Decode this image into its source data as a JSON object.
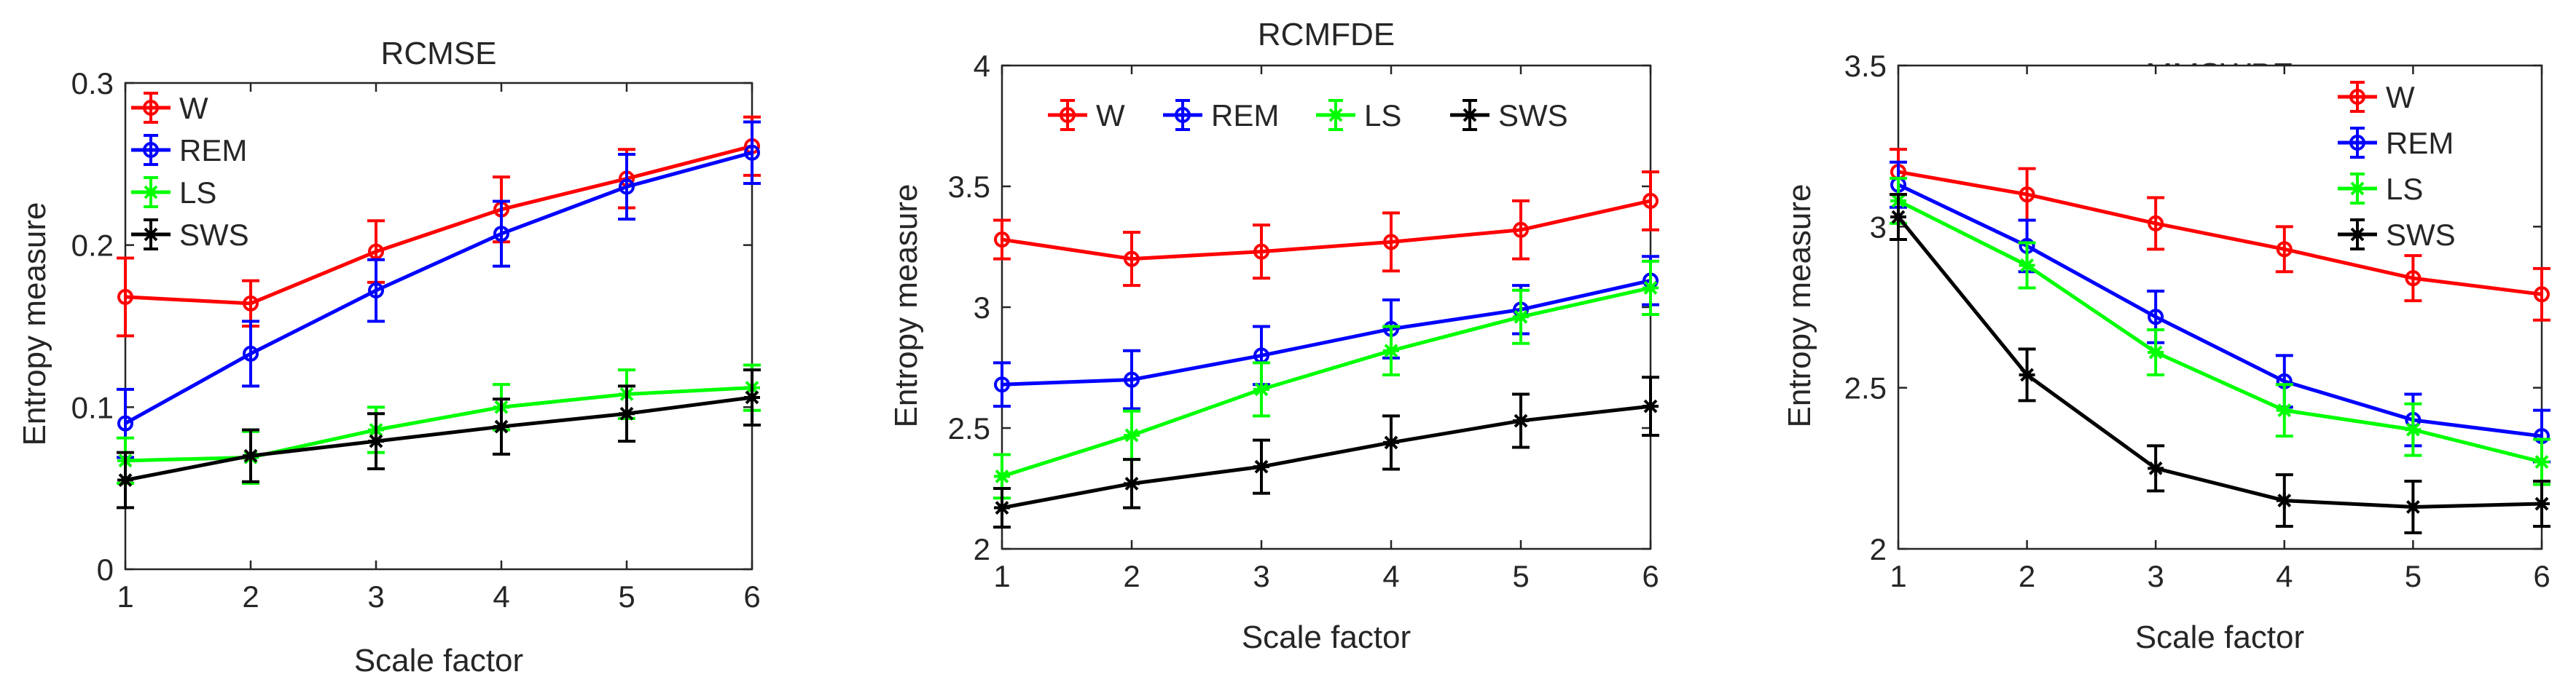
{
  "chart_data": [
    {
      "type": "line",
      "title": "RCMSE",
      "xlabel": "Scale factor",
      "ylabel": "Entropy measure",
      "x": [
        1,
        2,
        3,
        4,
        5,
        6
      ],
      "xticks": [
        "1",
        "2",
        "3",
        "4",
        "5",
        "6"
      ],
      "ylim": [
        0,
        0.3
      ],
      "yticks": [
        0,
        0.1,
        0.2,
        0.3
      ],
      "ytick_labels": [
        "0",
        "0.1",
        "0.2",
        "0.3"
      ],
      "legend": {
        "placement": "top-left",
        "orientation": "vertical"
      },
      "series": [
        {
          "name": "W",
          "color": "#ff0000",
          "marker": "circle",
          "values": [
            0.168,
            0.164,
            0.196,
            0.222,
            0.241,
            0.261
          ],
          "errors": [
            0.024,
            0.014,
            0.019,
            0.02,
            0.018,
            0.018
          ]
        },
        {
          "name": "REM",
          "color": "#0000ff",
          "marker": "circle",
          "values": [
            0.09,
            0.133,
            0.172,
            0.207,
            0.236,
            0.257
          ],
          "errors": [
            0.021,
            0.02,
            0.019,
            0.02,
            0.02,
            0.019
          ]
        },
        {
          "name": "LS",
          "color": "#00ff00",
          "marker": "star",
          "values": [
            0.067,
            0.069,
            0.086,
            0.1,
            0.108,
            0.112
          ],
          "errors": [
            0.014,
            0.016,
            0.014,
            0.014,
            0.015,
            0.014
          ]
        },
        {
          "name": "SWS",
          "color": "#000000",
          "marker": "star",
          "values": [
            0.055,
            0.07,
            0.079,
            0.088,
            0.096,
            0.106
          ],
          "errors": [
            0.017,
            0.016,
            0.017,
            0.017,
            0.017,
            0.017
          ]
        }
      ]
    },
    {
      "type": "line",
      "title": "RCMFDE",
      "xlabel": "Scale factor",
      "ylabel": "Entropy measure",
      "x": [
        1,
        2,
        3,
        4,
        5,
        6
      ],
      "xticks": [
        "1",
        "2",
        "3",
        "4",
        "5",
        "6"
      ],
      "ylim": [
        2,
        4
      ],
      "yticks": [
        2,
        2.5,
        3,
        3.5,
        4
      ],
      "ytick_labels": [
        "2",
        "2.5",
        "3",
        "3.5",
        "4"
      ],
      "legend": {
        "placement": "top",
        "orientation": "horizontal"
      },
      "series": [
        {
          "name": "W",
          "color": "#ff0000",
          "marker": "circle",
          "values": [
            3.28,
            3.2,
            3.23,
            3.27,
            3.32,
            3.44
          ],
          "errors": [
            0.08,
            0.11,
            0.11,
            0.12,
            0.12,
            0.12
          ]
        },
        {
          "name": "REM",
          "color": "#0000ff",
          "marker": "circle",
          "values": [
            2.68,
            2.7,
            2.8,
            2.91,
            2.99,
            3.11
          ],
          "errors": [
            0.09,
            0.12,
            0.12,
            0.12,
            0.1,
            0.1
          ]
        },
        {
          "name": "LS",
          "color": "#00ff00",
          "marker": "star",
          "values": [
            2.3,
            2.47,
            2.66,
            2.82,
            2.96,
            3.08
          ],
          "errors": [
            0.09,
            0.1,
            0.11,
            0.1,
            0.11,
            0.11
          ]
        },
        {
          "name": "SWS",
          "color": "#000000",
          "marker": "star",
          "values": [
            2.17,
            2.27,
            2.34,
            2.44,
            2.53,
            2.59
          ],
          "errors": [
            0.08,
            0.1,
            0.11,
            0.11,
            0.11,
            0.12
          ]
        }
      ]
    },
    {
      "type": "line",
      "title": "MMSWPE",
      "xlabel": "Scale factor",
      "ylabel": "Entropy measure",
      "x": [
        1,
        2,
        3,
        4,
        5,
        6
      ],
      "xticks": [
        "1",
        "2",
        "3",
        "4",
        "5",
        "6"
      ],
      "ylim": [
        2,
        3.5
      ],
      "yticks": [
        2,
        2.5,
        3,
        3.5
      ],
      "ytick_labels": [
        "2",
        "2.5",
        "3",
        "3.5"
      ],
      "legend": {
        "placement": "top-right",
        "orientation": "vertical"
      },
      "series": [
        {
          "name": "W",
          "color": "#ff0000",
          "marker": "circle",
          "values": [
            3.17,
            3.1,
            3.01,
            2.93,
            2.84,
            2.79
          ],
          "errors": [
            0.07,
            0.08,
            0.08,
            0.07,
            0.07,
            0.08
          ]
        },
        {
          "name": "REM",
          "color": "#0000ff",
          "marker": "circle",
          "values": [
            3.13,
            2.94,
            2.72,
            2.52,
            2.4,
            2.35
          ],
          "errors": [
            0.07,
            0.08,
            0.08,
            0.08,
            0.08,
            0.08
          ]
        },
        {
          "name": "LS",
          "color": "#00ff00",
          "marker": "star",
          "values": [
            3.08,
            2.88,
            2.61,
            2.43,
            2.37,
            2.27
          ],
          "errors": [
            0.07,
            0.07,
            0.07,
            0.08,
            0.08,
            0.07
          ]
        },
        {
          "name": "SWS",
          "color": "#000000",
          "marker": "star",
          "values": [
            3.03,
            2.54,
            2.25,
            2.15,
            2.13,
            2.14
          ],
          "errors": [
            0.07,
            0.08,
            0.07,
            0.08,
            0.08,
            0.07
          ]
        }
      ]
    }
  ]
}
